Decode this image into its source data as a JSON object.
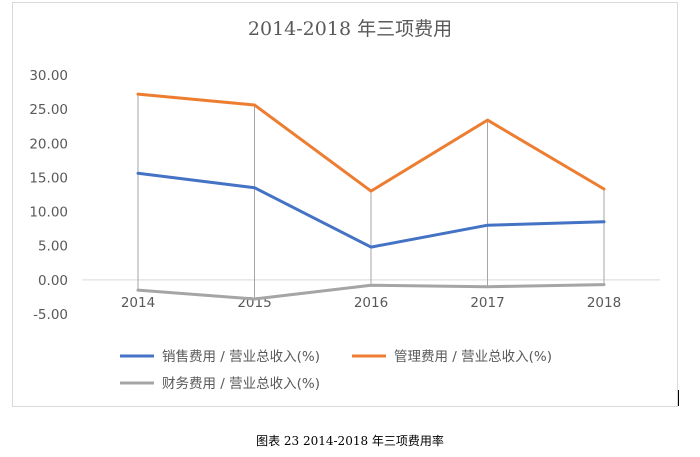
{
  "chart_data": {
    "type": "line",
    "title": "2014-2018 年三项费用",
    "categories": [
      "2014",
      "2015",
      "2016",
      "2017",
      "2018"
    ],
    "ylim": [
      -5,
      30
    ],
    "yticks": [
      "30.00",
      "25.00",
      "20.00",
      "15.00",
      "10.00",
      "5.00",
      "0.00",
      "-5.00"
    ],
    "grid": false,
    "drop_lines": true,
    "legend_position": "bottom-left",
    "series": [
      {
        "name": "销售费用 / 营业总收入(%)",
        "color": "#4472c4",
        "values": [
          15.6,
          13.5,
          4.8,
          8.0,
          8.5
        ]
      },
      {
        "name": "管理费用 / 营业总收入(%)",
        "color": "#ed7d31",
        "values": [
          27.2,
          25.6,
          13.0,
          23.4,
          13.3
        ]
      },
      {
        "name": "财务费用 / 营业总收入(%)",
        "color": "#a5a5a5",
        "values": [
          -1.5,
          -2.8,
          -0.8,
          -1.0,
          -0.7
        ]
      }
    ]
  },
  "caption": "图表 23 2014-2018 年三项费用率"
}
